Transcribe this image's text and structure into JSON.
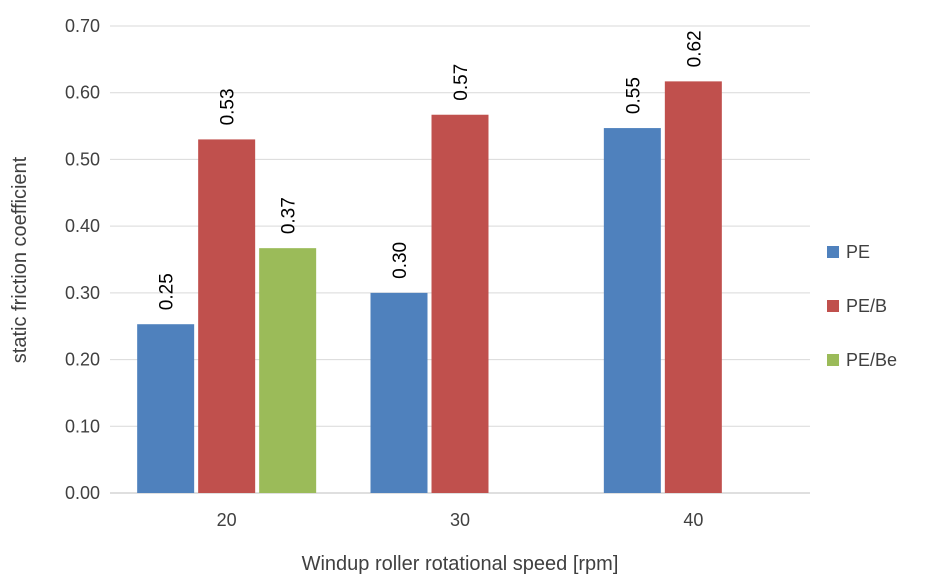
{
  "chart_data": {
    "type": "bar",
    "title": "",
    "xlabel": "Windup roller rotational speed [rpm]",
    "ylabel": "static friction coefficient",
    "categories": [
      "20",
      "30",
      "40"
    ],
    "ylim": [
      0,
      0.7
    ],
    "yticks": [
      "0.00",
      "0.10",
      "0.20",
      "0.30",
      "0.40",
      "0.50",
      "0.60",
      "0.70"
    ],
    "grid": true,
    "legend_position": "right",
    "series": [
      {
        "name": "PE",
        "color": "#4f81bd",
        "values": [
          0.253,
          0.3,
          0.547
        ],
        "labels": [
          "0.25",
          "0.30",
          "0.55"
        ]
      },
      {
        "name": "PE/B",
        "color": "#c0504d",
        "values": [
          0.53,
          0.567,
          0.617
        ],
        "labels": [
          "0.53",
          "0.57",
          "0.62"
        ]
      },
      {
        "name": "PE/Be",
        "color": "#9bbb59",
        "values": [
          0.367,
          null,
          null
        ],
        "labels": [
          "0.37",
          "",
          ""
        ]
      }
    ]
  }
}
